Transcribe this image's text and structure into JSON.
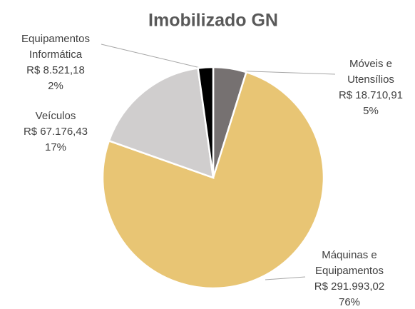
{
  "chart_data": {
    "type": "pie",
    "title": "Imobilizado GN",
    "categories": [
      "Móveis e Utensílios",
      "Máquinas e Equipamentos",
      "Veículos",
      "Equipamentos Informática"
    ],
    "values": [
      18710.91,
      291993.02,
      67176.43,
      8521.18
    ],
    "value_labels": [
      "R$ 18.710,91",
      "R$ 291.993,02",
      "R$ 67.176,43",
      "R$ 8.521,18"
    ],
    "percent_labels": [
      "5%",
      "76%",
      "17%",
      "2%"
    ],
    "colors": [
      "#767171",
      "#e8c574",
      "#d0cece",
      "#000000"
    ]
  }
}
